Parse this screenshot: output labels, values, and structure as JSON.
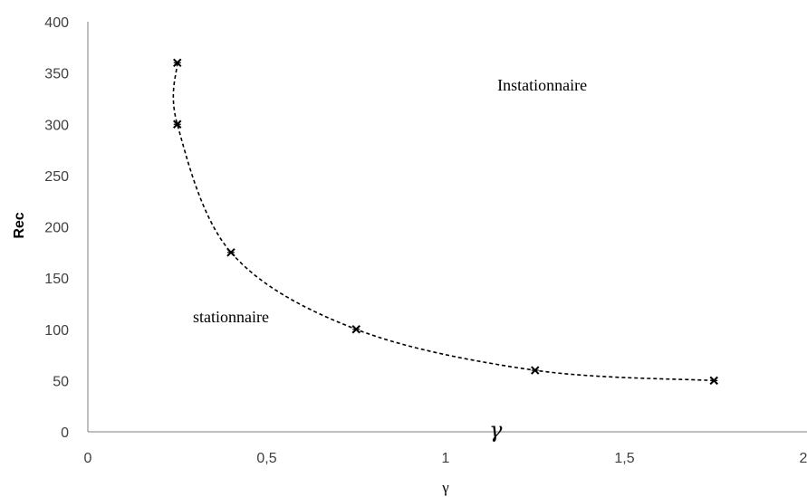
{
  "chart_data": {
    "type": "scatter",
    "title": "",
    "xlabel": "γ",
    "ylabel": "Rec",
    "xlim": [
      0,
      2
    ],
    "ylim": [
      0,
      400
    ],
    "x_ticks": [
      0,
      0.5,
      1,
      1.5,
      2
    ],
    "x_tick_labels": [
      "0",
      "0,5",
      "1",
      "1,5",
      "2"
    ],
    "y_ticks": [
      0,
      50,
      100,
      150,
      200,
      250,
      300,
      350,
      400
    ],
    "y_tick_labels": [
      "0",
      "50",
      "100",
      "150",
      "200",
      "250",
      "300",
      "350",
      "400"
    ],
    "grid": false,
    "legend": "none",
    "series": [
      {
        "marker": "x",
        "line": "dashed smooth",
        "color": "#000000",
        "points": [
          {
            "x": 0.25,
            "y": 360
          },
          {
            "x": 0.25,
            "y": 300
          },
          {
            "x": 0.4,
            "y": 175
          },
          {
            "x": 0.75,
            "y": 100
          },
          {
            "x": 1.25,
            "y": 60
          },
          {
            "x": 1.75,
            "y": 50
          }
        ]
      }
    ],
    "annotations": [
      {
        "text": "Instationnaire",
        "x": 1.27,
        "y": 338
      },
      {
        "text": "stationnaire",
        "x": 0.4,
        "y": 112
      },
      {
        "text": "γ",
        "x": 1.14,
        "y": 0,
        "style": "italic"
      }
    ]
  }
}
